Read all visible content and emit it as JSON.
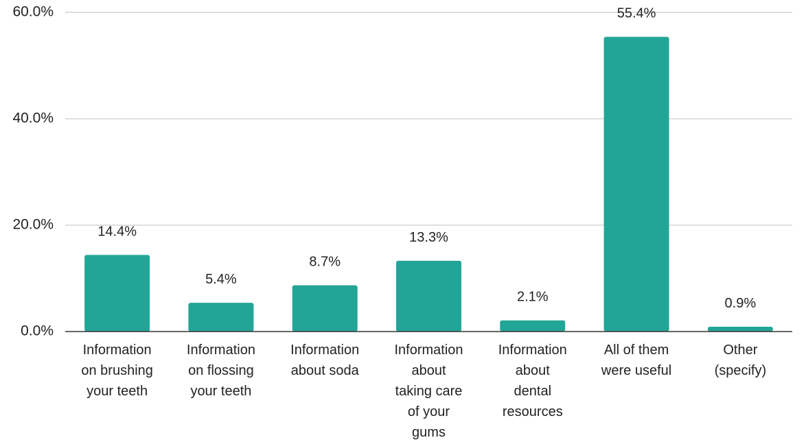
{
  "chart_data": {
    "type": "bar",
    "title": "",
    "xlabel": "",
    "ylabel": "",
    "categories": [
      [
        "Information",
        "on brushing",
        "your teeth"
      ],
      [
        "Information",
        "on flossing",
        "your teeth"
      ],
      [
        "Information",
        "about soda"
      ],
      [
        "Information",
        "about",
        "taking care",
        "of your",
        "gums"
      ],
      [
        "Information",
        "about",
        "dental",
        "resources"
      ],
      [
        "All of them",
        "were useful"
      ],
      [
        "Other",
        "(specify)"
      ]
    ],
    "values": [
      14.4,
      5.4,
      8.7,
      13.3,
      2.1,
      55.4,
      0.9
    ],
    "data_labels": [
      "14.4%",
      "5.4%",
      "8.7%",
      "13.3%",
      "2.1%",
      "55.4%",
      "0.9%"
    ],
    "ylim": [
      0,
      60
    ],
    "yticks": [
      0,
      20,
      40,
      60
    ],
    "ytick_labels": [
      "0.0%",
      "20.0%",
      "40.0%",
      "60.0%"
    ],
    "grid": true,
    "legend": "none",
    "bar_color": "#22a596"
  }
}
